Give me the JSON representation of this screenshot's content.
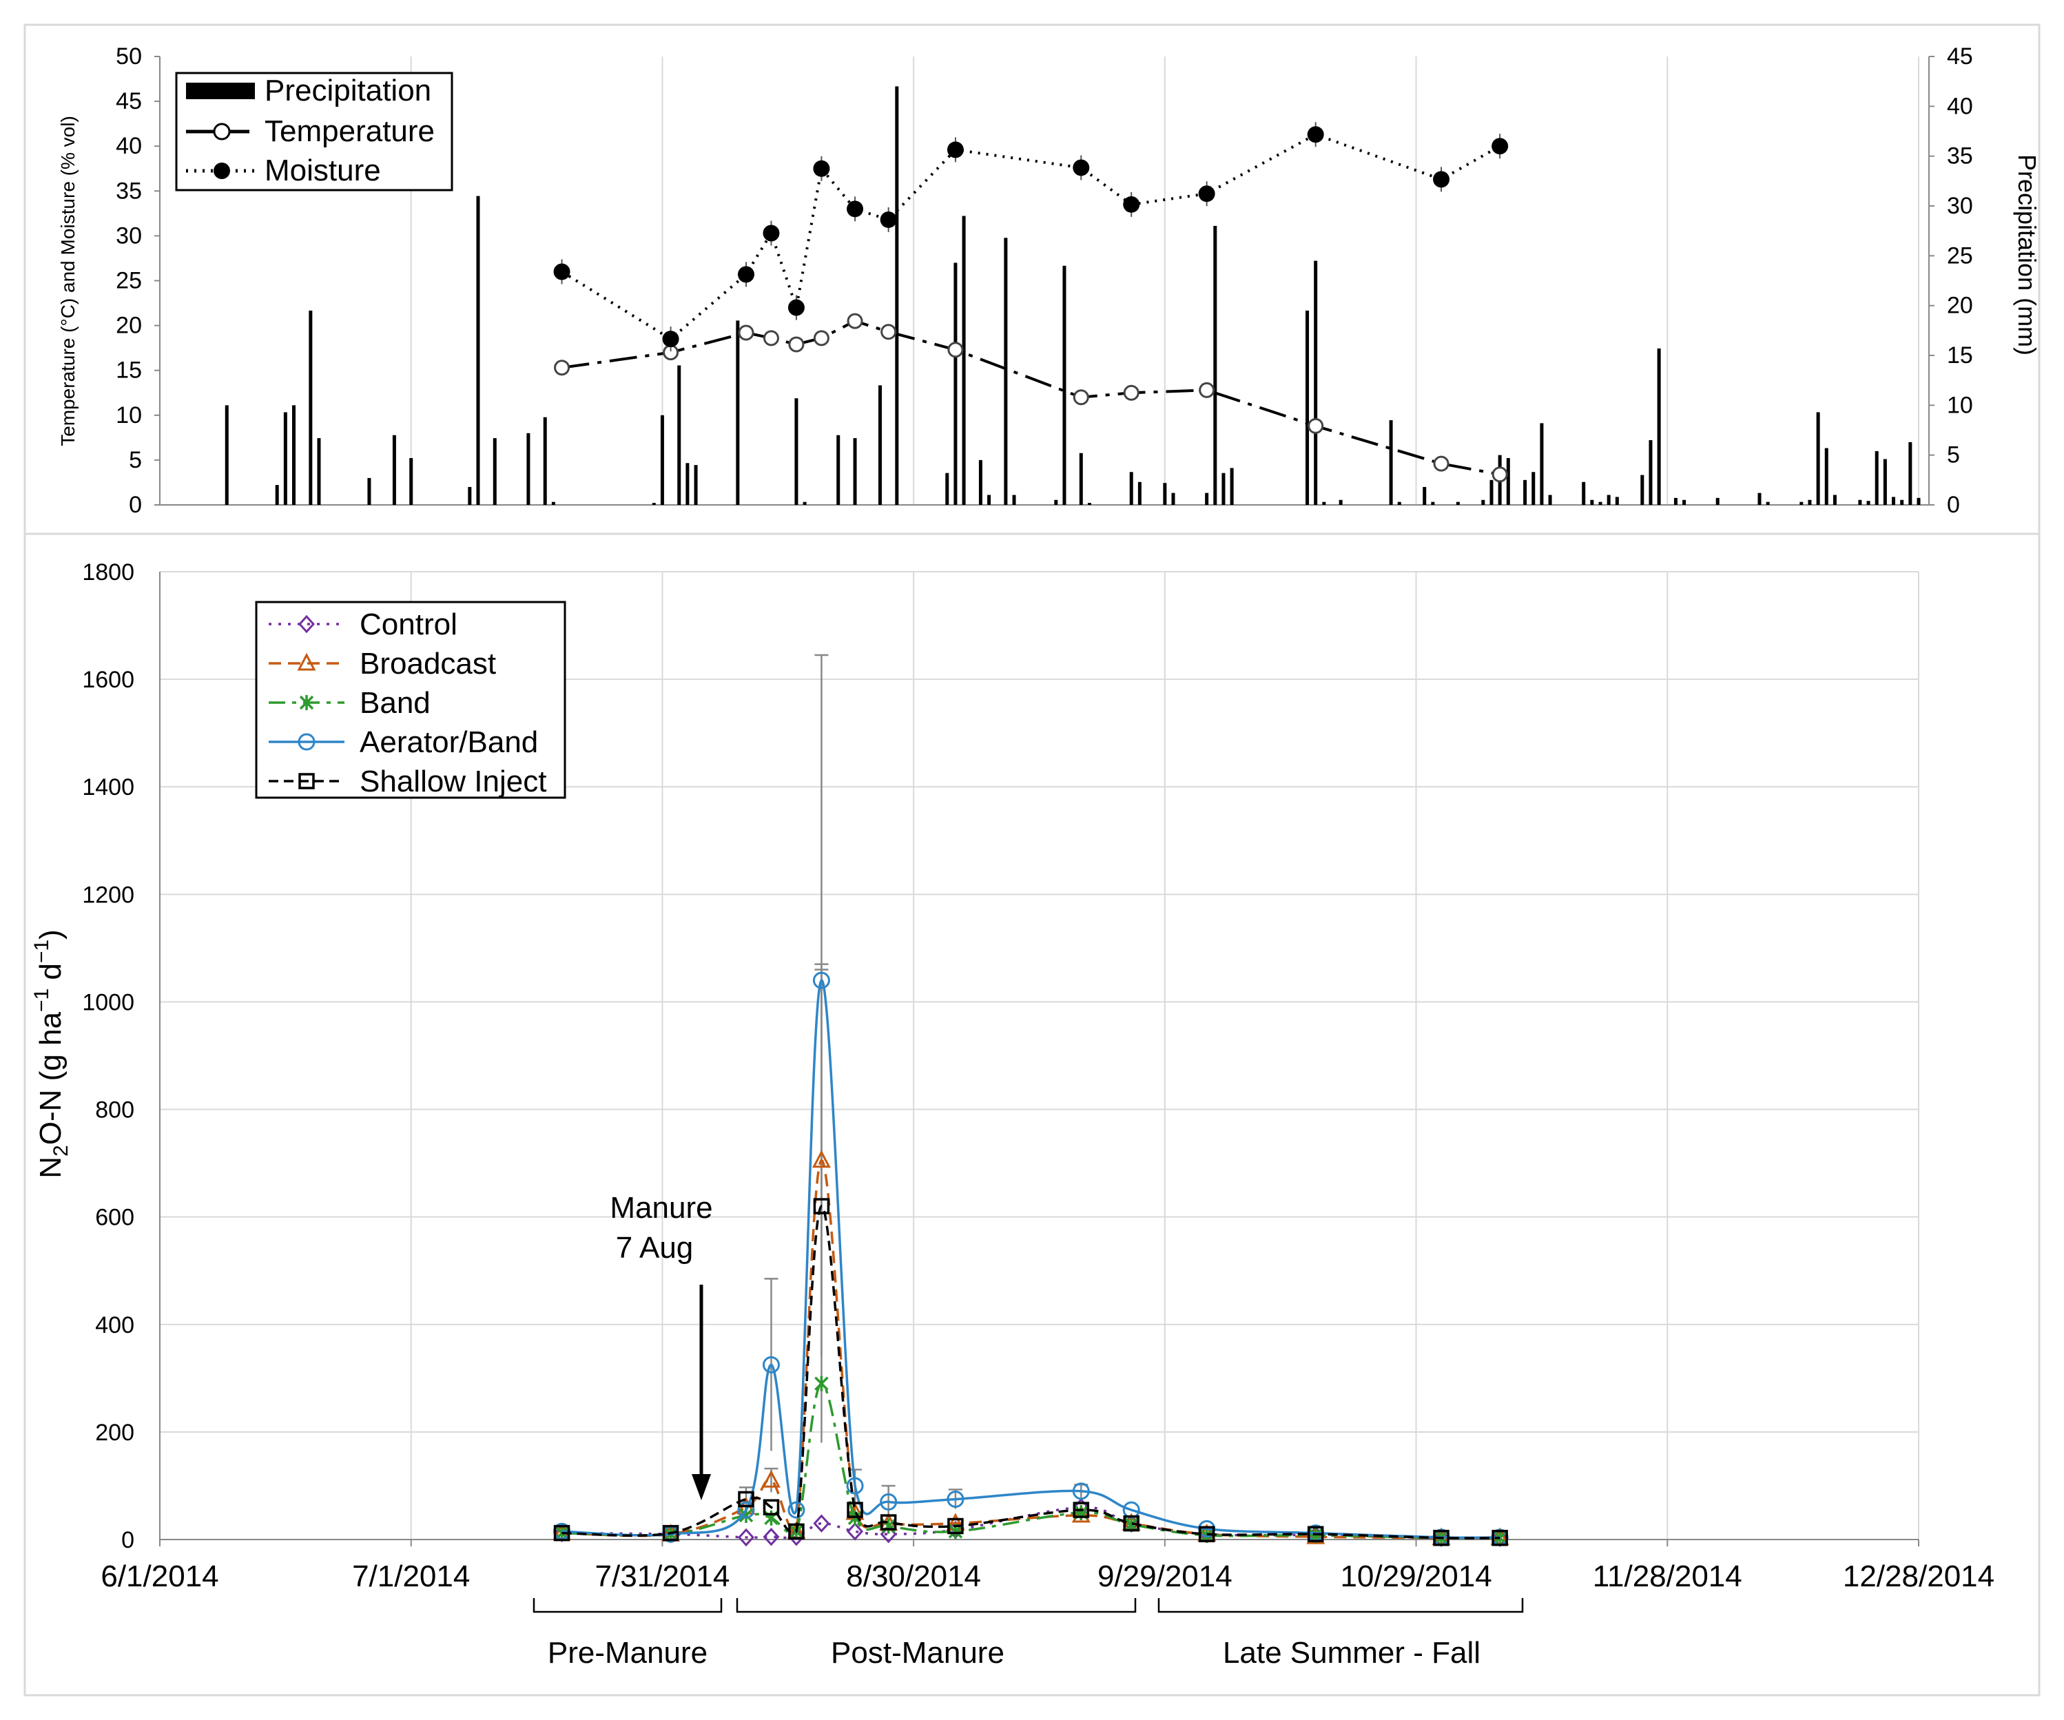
{
  "chart_data": [
    {
      "type": "bar+line",
      "title": "",
      "ylabel": "Temperature (°C) and Moisture (% vol)",
      "y2label": "Precipitation (mm)",
      "ylim": [
        0,
        50
      ],
      "y2lim": [
        0,
        45
      ],
      "yticks": [
        "0",
        "5",
        "10",
        "15",
        "20",
        "25",
        "30",
        "35",
        "40",
        "45",
        "50"
      ],
      "y2ticks": [
        "0",
        "5",
        "10",
        "15",
        "20",
        "25",
        "30",
        "35",
        "40",
        "45"
      ],
      "legend": [
        "Precipitation",
        "Temperature",
        "Moisture"
      ],
      "precipitation": [
        [
          8,
          10
        ],
        [
          14,
          2
        ],
        [
          15,
          9.3
        ],
        [
          16,
          10
        ],
        [
          18,
          19.5
        ],
        [
          19,
          6.7
        ],
        [
          25,
          2.7
        ],
        [
          28,
          7
        ],
        [
          30,
          4.7
        ],
        [
          37,
          1.8
        ],
        [
          38,
          31
        ],
        [
          40,
          6.7
        ],
        [
          44,
          7.2
        ],
        [
          46,
          8.8
        ],
        [
          47,
          0.3
        ],
        [
          59,
          0.2
        ],
        [
          60,
          9
        ],
        [
          62,
          14
        ],
        [
          63,
          4.2
        ],
        [
          64,
          4
        ],
        [
          69,
          18.5
        ],
        [
          76,
          10.7
        ],
        [
          77,
          0.3
        ],
        [
          81,
          7
        ],
        [
          83,
          6.7
        ],
        [
          86,
          12
        ],
        [
          88,
          42
        ],
        [
          94,
          3.2
        ],
        [
          95,
          24.3
        ],
        [
          96,
          29
        ],
        [
          98,
          4.5
        ],
        [
          99,
          1
        ],
        [
          101,
          26.8
        ],
        [
          102,
          1
        ],
        [
          107,
          0.5
        ],
        [
          108,
          24
        ],
        [
          110,
          5.2
        ],
        [
          111,
          0.2
        ],
        [
          116,
          3.3
        ],
        [
          117,
          2.3
        ],
        [
          120,
          2.2
        ],
        [
          121,
          1.2
        ],
        [
          125,
          1.2
        ],
        [
          126,
          28
        ],
        [
          127,
          3.2
        ],
        [
          128,
          3.7
        ],
        [
          137,
          19.5
        ],
        [
          138,
          24.5
        ],
        [
          139,
          0.3
        ],
        [
          141,
          0.5
        ],
        [
          147,
          8.5
        ],
        [
          148,
          0.3
        ],
        [
          151,
          1.8
        ],
        [
          152,
          0.3
        ],
        [
          155,
          0.3
        ],
        [
          158,
          0.5
        ],
        [
          159,
          2.5
        ],
        [
          160,
          5
        ],
        [
          161,
          4.7
        ],
        [
          163,
          2.5
        ],
        [
          164,
          3.3
        ],
        [
          165,
          8.2
        ],
        [
          166,
          1
        ],
        [
          170,
          2.3
        ],
        [
          171,
          0.5
        ],
        [
          172,
          0.3
        ],
        [
          173,
          1
        ],
        [
          174,
          0.8
        ],
        [
          177,
          3
        ],
        [
          178,
          6.5
        ],
        [
          179,
          15.7
        ],
        [
          181,
          0.7
        ],
        [
          182,
          0.5
        ],
        [
          186,
          0.7
        ],
        [
          191,
          1.2
        ],
        [
          192,
          0.3
        ],
        [
          196,
          0.3
        ],
        [
          197,
          0.5
        ],
        [
          198,
          9.3
        ],
        [
          199,
          5.7
        ],
        [
          200,
          1
        ],
        [
          203,
          0.5
        ],
        [
          204,
          0.4
        ],
        [
          205,
          5.4
        ],
        [
          206,
          4.6
        ],
        [
          207,
          0.8
        ],
        [
          208,
          0.5
        ],
        [
          209,
          6.3
        ],
        [
          210,
          0.7
        ]
      ],
      "temperature": [
        [
          48,
          15.3
        ],
        [
          61,
          17
        ],
        [
          70,
          19.2
        ],
        [
          73,
          18.6
        ],
        [
          76,
          17.9
        ],
        [
          79,
          18.6
        ],
        [
          83,
          20.5
        ],
        [
          87,
          19.3
        ],
        [
          95,
          17.3
        ],
        [
          110,
          12
        ],
        [
          116,
          12.5
        ],
        [
          125,
          12.8
        ],
        [
          138,
          8.8
        ],
        [
          153,
          4.6
        ],
        [
          160,
          3.4
        ]
      ],
      "moisture": [
        [
          48,
          26
        ],
        [
          61,
          18.5
        ],
        [
          70,
          25.7
        ],
        [
          73,
          30.3
        ],
        [
          76,
          22
        ],
        [
          79,
          37.5
        ],
        [
          83,
          33
        ],
        [
          87,
          31.8
        ],
        [
          95,
          39.6
        ],
        [
          110,
          37.6
        ],
        [
          116,
          33.5
        ],
        [
          125,
          34.7
        ],
        [
          138,
          41.3
        ],
        [
          153,
          36.3
        ],
        [
          160,
          40
        ]
      ]
    },
    {
      "type": "line",
      "title": "",
      "xlabel": "",
      "ylabel_main": "N",
      "ylabel_sub": "2",
      "ylabel_rest": "O-N (g ha",
      "ylabel_exp1": "−1",
      "ylabel_mid": " d",
      "ylabel_exp2": "−1",
      "ylabel_end": ")",
      "ylim": [
        0,
        1800
      ],
      "xlim": [
        0,
        210
      ],
      "yticks": [
        "0",
        "200",
        "400",
        "600",
        "800",
        "1000",
        "1200",
        "1400",
        "1600",
        "1800"
      ],
      "xticks": [
        {
          "pos": 0,
          "label": "6/1/2014"
        },
        {
          "pos": 30,
          "label": "7/1/2014"
        },
        {
          "pos": 60,
          "label": "7/31/2014"
        },
        {
          "pos": 90,
          "label": "8/30/2014"
        },
        {
          "pos": 120,
          "label": "9/29/2014"
        },
        {
          "pos": 150,
          "label": "10/29/2014"
        },
        {
          "pos": 180,
          "label": "11/28/2014"
        },
        {
          "pos": 210,
          "label": "12/28/2014"
        }
      ],
      "series": [
        {
          "name": "Control",
          "color": "#7030a0",
          "marker": "diamond",
          "dash": "4 10",
          "points": [
            [
              48,
              12
            ],
            [
              61,
              10
            ],
            [
              70,
              4
            ],
            [
              73,
              5
            ],
            [
              76,
              5
            ],
            [
              79,
              30
            ],
            [
              83,
              15
            ],
            [
              87,
              10
            ],
            [
              95,
              18
            ],
            [
              110,
              60
            ],
            [
              116,
              30
            ],
            [
              125,
              10
            ],
            [
              138,
              8
            ],
            [
              153,
              3
            ],
            [
              160,
              3
            ]
          ]
        },
        {
          "name": "Broadcast",
          "color": "#c55a11",
          "marker": "triangle",
          "dash": "18 10",
          "points": [
            [
              48,
              12
            ],
            [
              61,
              10
            ],
            [
              70,
              60
            ],
            [
              73,
              110
            ],
            [
              76,
              15
            ],
            [
              79,
              705
            ],
            [
              83,
              50
            ],
            [
              87,
              30
            ],
            [
              95,
              30
            ],
            [
              110,
              45
            ],
            [
              116,
              30
            ],
            [
              125,
              10
            ],
            [
              138,
              5
            ],
            [
              153,
              3
            ],
            [
              160,
              3
            ]
          ]
        },
        {
          "name": "Band",
          "color": "#2e9a2e",
          "marker": "star",
          "dash": "24 10 6 10",
          "points": [
            [
              48,
              12
            ],
            [
              61,
              10
            ],
            [
              70,
              45
            ],
            [
              73,
              40
            ],
            [
              76,
              15
            ],
            [
              79,
              290
            ],
            [
              83,
              40
            ],
            [
              87,
              25
            ],
            [
              95,
              15
            ],
            [
              110,
              50
            ],
            [
              116,
              28
            ],
            [
              125,
              8
            ],
            [
              138,
              8
            ],
            [
              153,
              3
            ],
            [
              160,
              3
            ]
          ]
        },
        {
          "name": "Aerator/Band",
          "color": "#2e86c8",
          "marker": "circle",
          "dash": "",
          "points": [
            [
              48,
              15
            ],
            [
              61,
              10
            ],
            [
              70,
              55
            ],
            [
              73,
              325
            ],
            [
              76,
              55
            ],
            [
              79,
              1040
            ],
            [
              83,
              100
            ],
            [
              87,
              70
            ],
            [
              95,
              75
            ],
            [
              110,
              90
            ],
            [
              116,
              55
            ],
            [
              125,
              20
            ],
            [
              138,
              12
            ],
            [
              153,
              4
            ],
            [
              160,
              4
            ]
          ]
        },
        {
          "name": "Shallow Inject",
          "color": "#000000",
          "marker": "square",
          "dash": "14 8",
          "points": [
            [
              48,
              12
            ],
            [
              61,
              12
            ],
            [
              70,
              75
            ],
            [
              73,
              60
            ],
            [
              76,
              15
            ],
            [
              79,
              620
            ],
            [
              83,
              55
            ],
            [
              87,
              32
            ],
            [
              95,
              25
            ],
            [
              110,
              55
            ],
            [
              116,
              30
            ],
            [
              125,
              10
            ],
            [
              138,
              10
            ],
            [
              153,
              3
            ],
            [
              160,
              3
            ]
          ]
        }
      ],
      "annotation": {
        "line1": "Manure",
        "line2": "7 Aug"
      },
      "periods": [
        "Pre-Manure",
        "Post-Manure",
        "Late Summer - Fall"
      ]
    }
  ]
}
